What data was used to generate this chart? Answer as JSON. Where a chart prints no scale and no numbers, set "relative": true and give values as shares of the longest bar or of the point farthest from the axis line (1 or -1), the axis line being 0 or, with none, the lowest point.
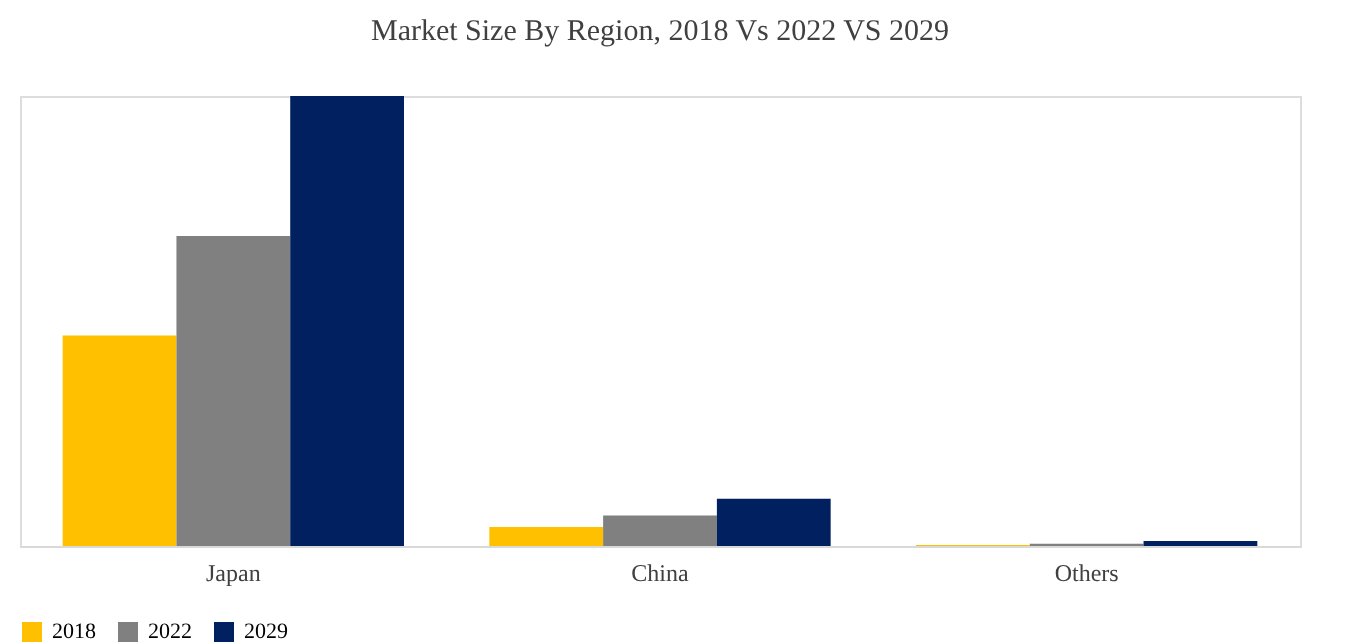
{
  "chart_data": {
    "type": "bar",
    "title": "Market Size By Region,  2018 Vs 2022 VS 2029",
    "categories": [
      "Japan",
      "China",
      "Others"
    ],
    "relative": true,
    "legend": "bottom",
    "grid": false,
    "series": [
      {
        "name": "2018",
        "color": "#ffc000",
        "values": [
          0.468,
          0.042,
          0.002
        ]
      },
      {
        "name": "2022",
        "color": "#808080",
        "values": [
          0.689,
          0.068,
          0.005
        ]
      },
      {
        "name": "2029",
        "color": "#002060",
        "values": [
          1,
          0.105,
          0.011
        ]
      }
    ]
  }
}
